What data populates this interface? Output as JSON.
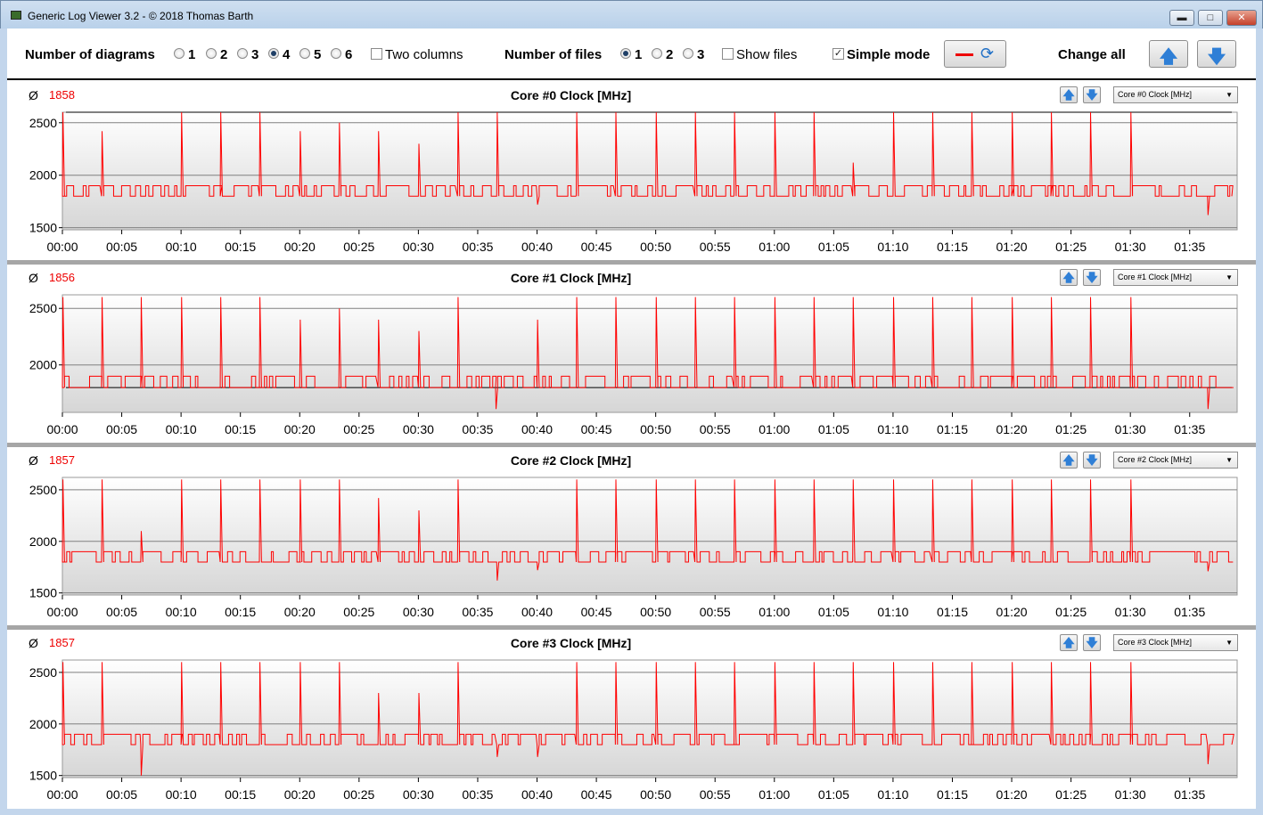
{
  "window": {
    "title": "Generic Log Viewer 3.2 - © 2018 Thomas Barth",
    "min_glyph": "▬",
    "max_glyph": "□",
    "close_glyph": "✕"
  },
  "toolbar": {
    "diagrams_label": "Number of diagrams",
    "diagram_options": [
      "1",
      "2",
      "3",
      "4",
      "5",
      "6"
    ],
    "diagram_selected": "4",
    "two_columns_label": "Two columns",
    "two_columns_checked": false,
    "files_label": "Number of files",
    "file_options": [
      "1",
      "2",
      "3"
    ],
    "file_selected": "1",
    "show_files_label": "Show files",
    "show_files_checked": false,
    "simple_mode_label": "Simple mode",
    "simple_mode_checked": true,
    "change_all_label": "Change all",
    "up_glyph": "🡅",
    "down_glyph": "🡇"
  },
  "colors": {
    "series": "#ff0000",
    "reference": "#000000",
    "avg": "#e00000"
  },
  "x_ticks": [
    "00:00",
    "00:05",
    "00:10",
    "00:15",
    "00:20",
    "00:25",
    "00:30",
    "00:35",
    "00:40",
    "00:45",
    "00:50",
    "00:55",
    "01:00",
    "01:05",
    "01:10",
    "01:15",
    "01:20",
    "01:25",
    "01:30",
    "01:35"
  ],
  "panels": [
    {
      "avg_symbol": "Ø",
      "avg": "1858",
      "title": "Core #0 Clock [MHz]",
      "selector": "Core #0 Clock [MHz]"
    },
    {
      "avg_symbol": "Ø",
      "avg": "1856",
      "title": "Core #1 Clock [MHz]",
      "selector": "Core #1 Clock [MHz]"
    },
    {
      "avg_symbol": "Ø",
      "avg": "1857",
      "title": "Core #2 Clock [MHz]",
      "selector": "Core #2 Clock [MHz]"
    },
    {
      "avg_symbol": "Ø",
      "avg": "1857",
      "title": "Core #3 Clock [MHz]",
      "selector": "Core #3 Clock [MHz]"
    }
  ],
  "chart_data": [
    {
      "type": "line",
      "title": "Core #0 Clock [MHz]",
      "xlabel": "",
      "ylabel": "",
      "ylim": [
        1480,
        2600
      ],
      "yticks": [
        1500,
        2000,
        2500
      ],
      "xlim_minutes": [
        0,
        99
      ],
      "reference_line": 2600,
      "baseline": 1800,
      "low_level": 1900,
      "spikes": [
        [
          0,
          2600
        ],
        [
          3.3,
          2420
        ],
        [
          10,
          2600
        ],
        [
          13.3,
          2600
        ],
        [
          16.6,
          2600
        ],
        [
          20,
          2420
        ],
        [
          23.3,
          2500
        ],
        [
          26.6,
          2420
        ],
        [
          30,
          2300
        ],
        [
          33.3,
          2600
        ],
        [
          36.6,
          2600
        ],
        [
          43.3,
          2600
        ],
        [
          46.6,
          2600
        ],
        [
          50,
          2600
        ],
        [
          53.3,
          2600
        ],
        [
          56.6,
          2600
        ],
        [
          60,
          2600
        ],
        [
          63.3,
          2600
        ],
        [
          66.6,
          2120
        ],
        [
          70,
          2600
        ],
        [
          73.3,
          2600
        ],
        [
          76.6,
          2600
        ],
        [
          80,
          2600
        ],
        [
          83.3,
          2600
        ],
        [
          86.6,
          2600
        ],
        [
          90,
          2600
        ]
      ],
      "dips": [
        [
          40,
          1720
        ],
        [
          96.5,
          1620
        ]
      ],
      "grid": true
    },
    {
      "type": "line",
      "title": "Core #1 Clock [MHz]",
      "xlabel": "",
      "ylabel": "",
      "ylim": [
        1580,
        2620
      ],
      "yticks": [
        2000,
        2500
      ],
      "xlim_minutes": [
        0,
        99
      ],
      "reference_line": 1800,
      "baseline": 1800,
      "low_level": 1900,
      "spikes": [
        [
          0,
          2600
        ],
        [
          3.3,
          2600
        ],
        [
          6.6,
          2600
        ],
        [
          10,
          2600
        ],
        [
          13.3,
          2600
        ],
        [
          16.6,
          2600
        ],
        [
          20,
          2400
        ],
        [
          23.3,
          2500
        ],
        [
          26.6,
          2400
        ],
        [
          30,
          2300
        ],
        [
          33.3,
          2600
        ],
        [
          40,
          2400
        ],
        [
          43.3,
          2600
        ],
        [
          46.6,
          2600
        ],
        [
          50,
          2600
        ],
        [
          53.3,
          2600
        ],
        [
          56.6,
          2600
        ],
        [
          60,
          2600
        ],
        [
          63.3,
          2600
        ],
        [
          66.6,
          2600
        ],
        [
          70,
          2600
        ],
        [
          73.3,
          2600
        ],
        [
          76.6,
          2600
        ],
        [
          80,
          2600
        ],
        [
          83.3,
          2600
        ],
        [
          86.6,
          2600
        ],
        [
          90,
          2600
        ]
      ],
      "dips": [
        [
          36.5,
          1610
        ],
        [
          96.5,
          1610
        ]
      ],
      "grid": true
    },
    {
      "type": "line",
      "title": "Core #2 Clock [MHz]",
      "xlabel": "",
      "ylabel": "",
      "ylim": [
        1480,
        2620
      ],
      "yticks": [
        1500,
        2000,
        2500
      ],
      "xlim_minutes": [
        0,
        99
      ],
      "baseline": 1800,
      "low_level": 1900,
      "spikes": [
        [
          0,
          2600
        ],
        [
          3.3,
          2600
        ],
        [
          6.6,
          2100
        ],
        [
          10,
          2600
        ],
        [
          13.3,
          2600
        ],
        [
          16.6,
          2600
        ],
        [
          20,
          2600
        ],
        [
          23.3,
          2600
        ],
        [
          26.6,
          2420
        ],
        [
          30,
          2300
        ],
        [
          33.3,
          2600
        ],
        [
          43.3,
          2600
        ],
        [
          46.6,
          2600
        ],
        [
          50,
          2600
        ],
        [
          53.3,
          2600
        ],
        [
          56.6,
          2600
        ],
        [
          60,
          2600
        ],
        [
          63.3,
          2600
        ],
        [
          66.6,
          2600
        ],
        [
          70,
          2600
        ],
        [
          73.3,
          2600
        ],
        [
          76.6,
          2600
        ],
        [
          80,
          2600
        ],
        [
          83.3,
          2600
        ],
        [
          86.6,
          2600
        ],
        [
          90,
          2600
        ]
      ],
      "dips": [
        [
          36.6,
          1620
        ],
        [
          40,
          1720
        ],
        [
          96.5,
          1710
        ]
      ],
      "grid": true
    },
    {
      "type": "line",
      "title": "Core #3 Clock [MHz]",
      "xlabel": "",
      "ylabel": "",
      "ylim": [
        1480,
        2620
      ],
      "yticks": [
        1500,
        2000,
        2500
      ],
      "xlim_minutes": [
        0,
        99
      ],
      "baseline": 1800,
      "low_level": 1900,
      "spikes": [
        [
          0,
          2600
        ],
        [
          3.3,
          2600
        ],
        [
          10,
          2600
        ],
        [
          13.3,
          2600
        ],
        [
          16.6,
          2600
        ],
        [
          20,
          2600
        ],
        [
          23.3,
          2600
        ],
        [
          26.6,
          2300
        ],
        [
          30,
          2300
        ],
        [
          33.3,
          2600
        ],
        [
          43.3,
          2600
        ],
        [
          46.6,
          2600
        ],
        [
          50,
          2600
        ],
        [
          53.3,
          2600
        ],
        [
          56.6,
          2600
        ],
        [
          60,
          2600
        ],
        [
          63.3,
          2600
        ],
        [
          66.6,
          2600
        ],
        [
          70,
          2600
        ],
        [
          73.3,
          2600
        ],
        [
          76.6,
          2600
        ],
        [
          80,
          2600
        ],
        [
          83.3,
          2600
        ],
        [
          86.6,
          2600
        ],
        [
          90,
          2600
        ]
      ],
      "dips": [
        [
          6.6,
          1500
        ],
        [
          36.6,
          1680
        ],
        [
          40,
          1680
        ],
        [
          96.5,
          1610
        ]
      ],
      "grid": true
    }
  ]
}
